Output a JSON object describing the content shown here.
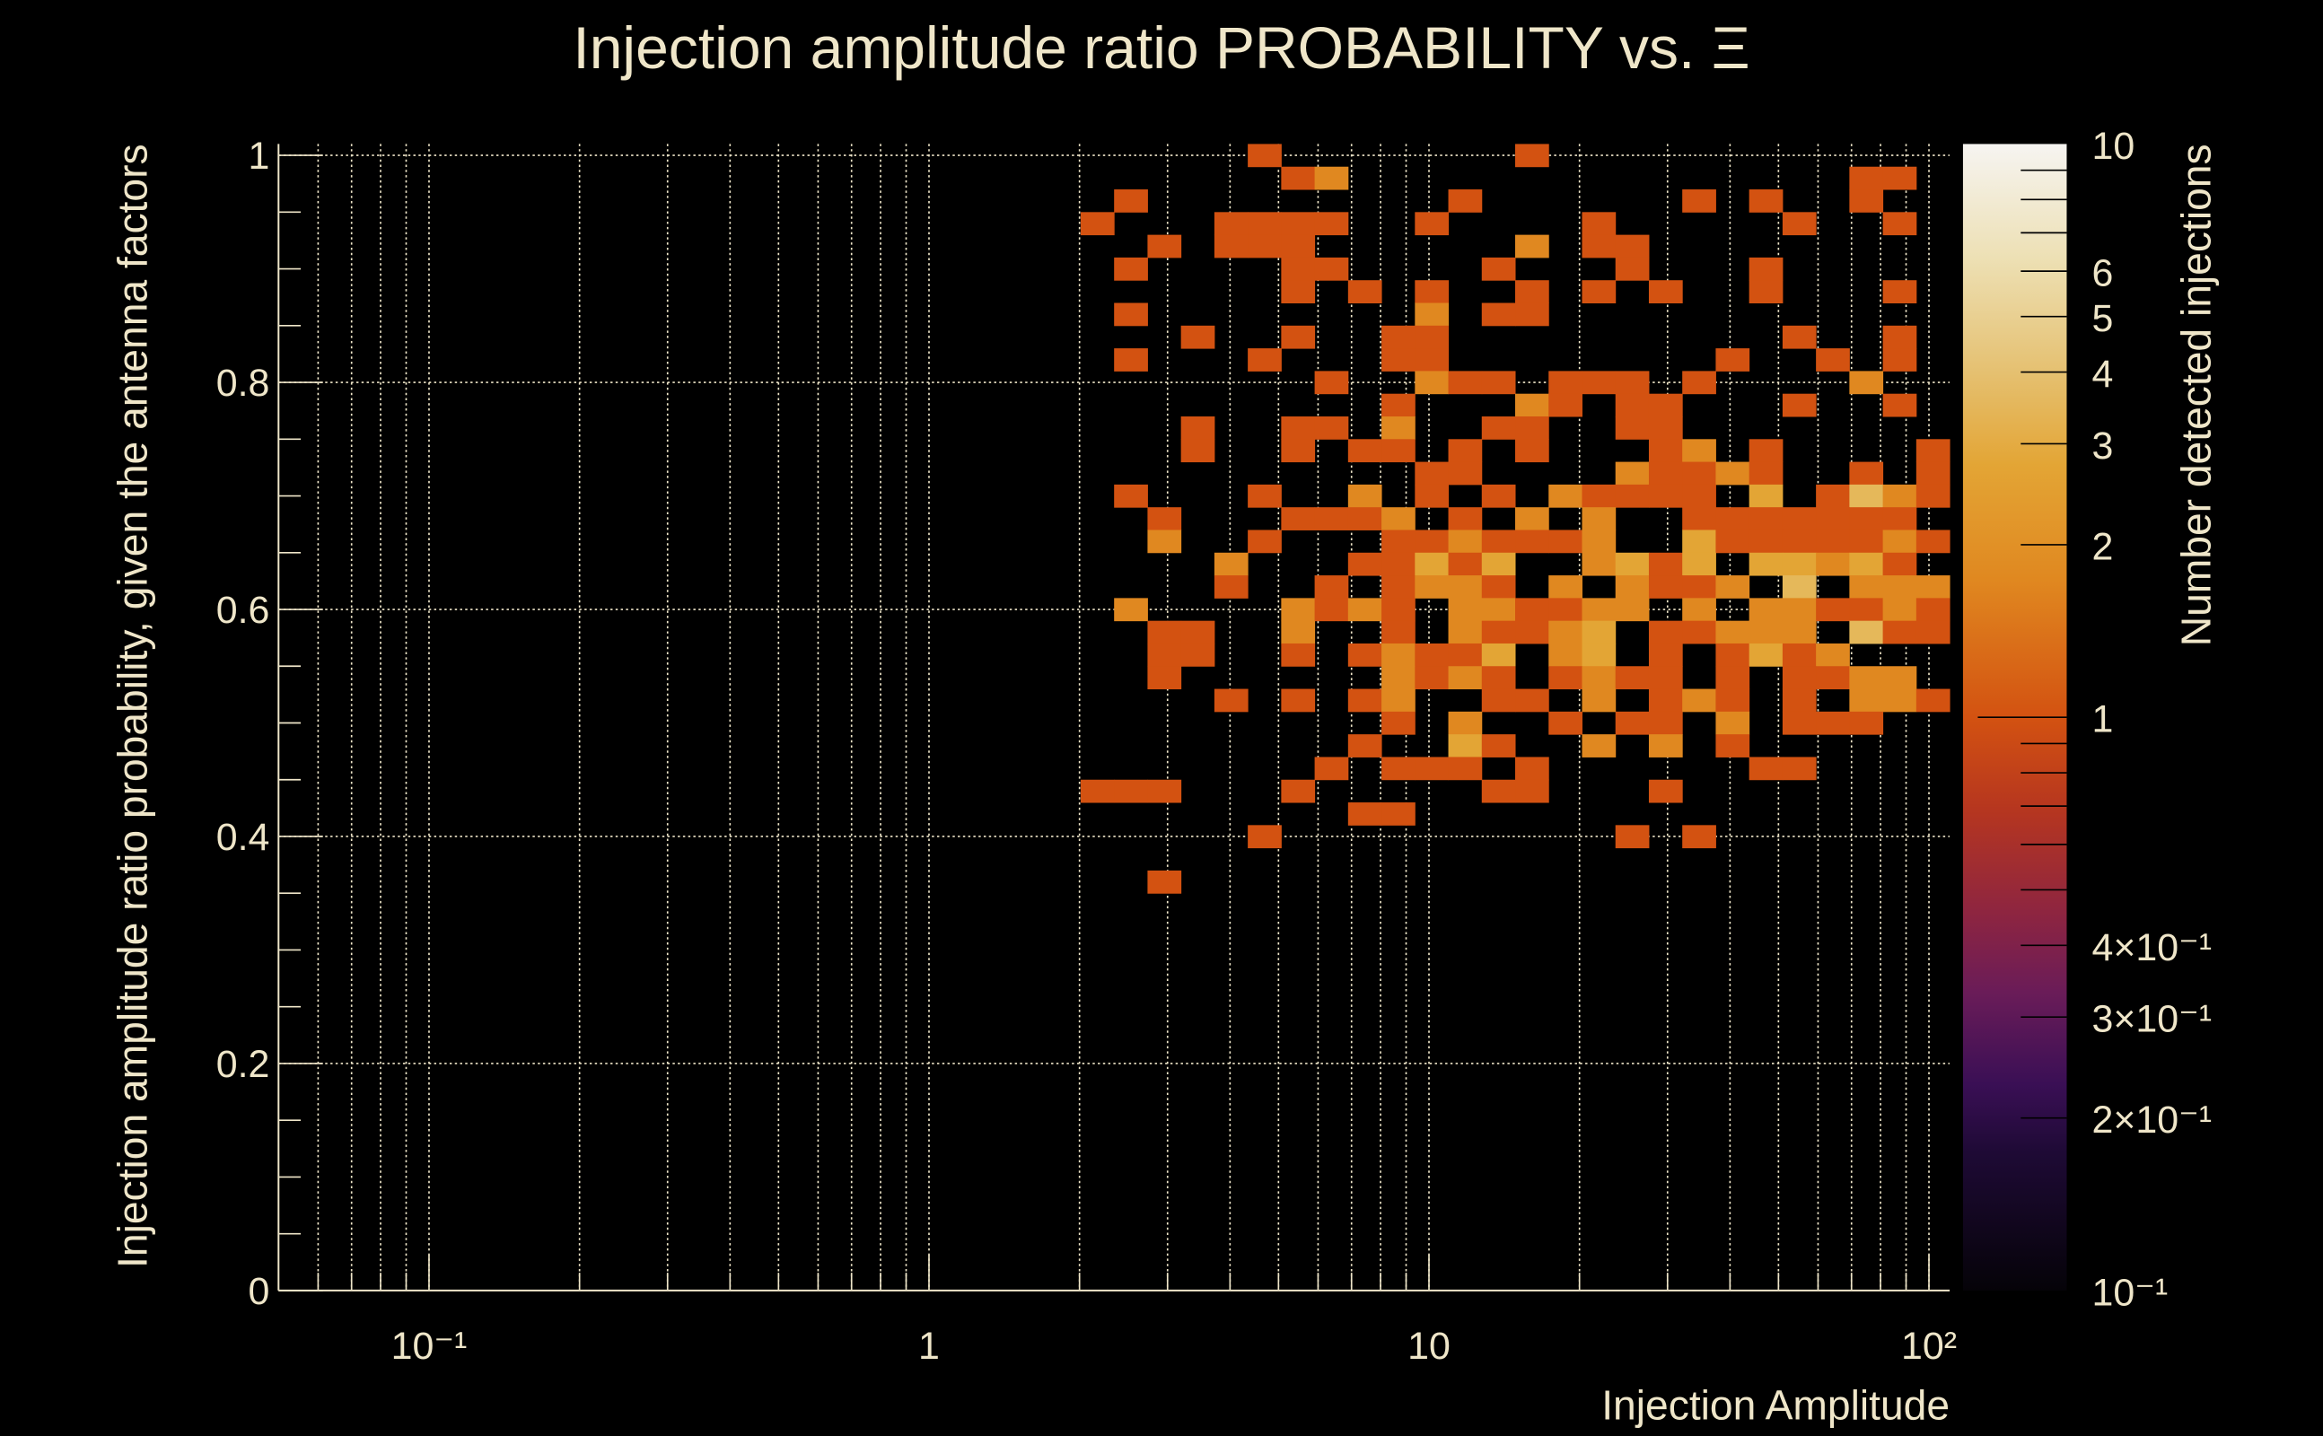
{
  "chart_data": {
    "type": "heatmap",
    "title": "Injection amplitude ratio PROBABILITY vs.  Ξ",
    "xlabel": "Injection Amplitude",
    "ylabel": "Injection amplitude ratio probability, given the antenna factors",
    "zlabel": "Number detected injections",
    "x_scale": "log",
    "xlim": [
      0.05,
      110
    ],
    "ylim": [
      0,
      1.01
    ],
    "zlim": [
      0.1,
      10
    ],
    "z_scale": "log",
    "grid": true,
    "x_bins": {
      "min": 0.05,
      "max": 110,
      "count": 50,
      "scale": "log"
    },
    "y_bins": {
      "min": -0.01,
      "max": 1.01,
      "count": 51,
      "scale": "linear"
    },
    "x_ticks": [
      {
        "value": 0.1,
        "label": "10⁻¹"
      },
      {
        "value": 1,
        "label": "1"
      },
      {
        "value": 10,
        "label": "10"
      },
      {
        "value": 100,
        "label": "10²"
      }
    ],
    "y_ticks": [
      {
        "value": 0,
        "label": "0"
      },
      {
        "value": 0.2,
        "label": "0.2"
      },
      {
        "value": 0.4,
        "label": "0.4"
      },
      {
        "value": 0.6,
        "label": "0.6"
      },
      {
        "value": 0.8,
        "label": "0.8"
      },
      {
        "value": 1,
        "label": "1"
      }
    ],
    "z_ticks": [
      {
        "value": 0.1,
        "label": "10⁻¹"
      },
      {
        "value": 0.2,
        "label": "2×10⁻¹"
      },
      {
        "value": 0.3,
        "label": "3×10⁻¹"
      },
      {
        "value": 0.4,
        "label": "4×10⁻¹"
      },
      {
        "value": 1,
        "label": "1"
      },
      {
        "value": 2,
        "label": "2"
      },
      {
        "value": 3,
        "label": "3"
      },
      {
        "value": 4,
        "label": "4"
      },
      {
        "value": 5,
        "label": "5"
      },
      {
        "value": 6,
        "label": "6"
      },
      {
        "value": 10,
        "label": "10"
      }
    ],
    "count_colors": {
      "1": "#d35211",
      "2": "#e08820",
      "3": "#e3a535",
      "4": "#e5b85a"
    },
    "cells_note": "each cell: [x_bin_index, y_bin_center, count]",
    "cells": [
      [
        29,
        1.0,
        1
      ],
      [
        37,
        1.0,
        1
      ],
      [
        30,
        0.98,
        1
      ],
      [
        31,
        0.98,
        2
      ],
      [
        47,
        0.98,
        1
      ],
      [
        48,
        0.98,
        1
      ],
      [
        25,
        0.96,
        1
      ],
      [
        35,
        0.96,
        1
      ],
      [
        42,
        0.96,
        1
      ],
      [
        44,
        0.96,
        1
      ],
      [
        47,
        0.96,
        1
      ],
      [
        24,
        0.94,
        1
      ],
      [
        28,
        0.94,
        1
      ],
      [
        29,
        0.94,
        1
      ],
      [
        30,
        0.94,
        1
      ],
      [
        31,
        0.94,
        1
      ],
      [
        34,
        0.94,
        1
      ],
      [
        39,
        0.94,
        1
      ],
      [
        45,
        0.94,
        1
      ],
      [
        48,
        0.94,
        1
      ],
      [
        26,
        0.92,
        1
      ],
      [
        28,
        0.92,
        1
      ],
      [
        29,
        0.92,
        1
      ],
      [
        30,
        0.92,
        1
      ],
      [
        37,
        0.92,
        2
      ],
      [
        39,
        0.92,
        1
      ],
      [
        40,
        0.92,
        1
      ],
      [
        25,
        0.9,
        1
      ],
      [
        30,
        0.9,
        1
      ],
      [
        31,
        0.9,
        1
      ],
      [
        36,
        0.9,
        1
      ],
      [
        40,
        0.9,
        1
      ],
      [
        44,
        0.9,
        1
      ],
      [
        30,
        0.88,
        1
      ],
      [
        32,
        0.88,
        1
      ],
      [
        34,
        0.88,
        1
      ],
      [
        37,
        0.88,
        1
      ],
      [
        39,
        0.88,
        1
      ],
      [
        41,
        0.88,
        1
      ],
      [
        44,
        0.88,
        1
      ],
      [
        48,
        0.88,
        1
      ],
      [
        25,
        0.86,
        1
      ],
      [
        34,
        0.86,
        2
      ],
      [
        36,
        0.86,
        1
      ],
      [
        37,
        0.86,
        1
      ],
      [
        27,
        0.84,
        1
      ],
      [
        30,
        0.84,
        1
      ],
      [
        33,
        0.84,
        1
      ],
      [
        34,
        0.84,
        1
      ],
      [
        45,
        0.84,
        1
      ],
      [
        48,
        0.84,
        1
      ],
      [
        25,
        0.82,
        1
      ],
      [
        29,
        0.82,
        1
      ],
      [
        33,
        0.82,
        1
      ],
      [
        34,
        0.82,
        1
      ],
      [
        43,
        0.82,
        1
      ],
      [
        46,
        0.82,
        1
      ],
      [
        48,
        0.82,
        1
      ],
      [
        31,
        0.8,
        1
      ],
      [
        34,
        0.8,
        2
      ],
      [
        35,
        0.8,
        1
      ],
      [
        36,
        0.8,
        1
      ],
      [
        38,
        0.8,
        1
      ],
      [
        39,
        0.8,
        1
      ],
      [
        40,
        0.8,
        1
      ],
      [
        42,
        0.8,
        1
      ],
      [
        47,
        0.8,
        2
      ],
      [
        33,
        0.78,
        1
      ],
      [
        37,
        0.78,
        2
      ],
      [
        38,
        0.78,
        1
      ],
      [
        40,
        0.78,
        1
      ],
      [
        41,
        0.78,
        1
      ],
      [
        45,
        0.78,
        1
      ],
      [
        48,
        0.78,
        1
      ],
      [
        27,
        0.76,
        1
      ],
      [
        30,
        0.76,
        1
      ],
      [
        31,
        0.76,
        1
      ],
      [
        33,
        0.76,
        2
      ],
      [
        36,
        0.76,
        1
      ],
      [
        37,
        0.76,
        1
      ],
      [
        40,
        0.76,
        1
      ],
      [
        41,
        0.76,
        1
      ],
      [
        27,
        0.74,
        1
      ],
      [
        30,
        0.74,
        1
      ],
      [
        32,
        0.74,
        1
      ],
      [
        33,
        0.74,
        1
      ],
      [
        35,
        0.74,
        1
      ],
      [
        37,
        0.74,
        1
      ],
      [
        41,
        0.74,
        1
      ],
      [
        42,
        0.74,
        2
      ],
      [
        44,
        0.74,
        1
      ],
      [
        49,
        0.74,
        1
      ],
      [
        34,
        0.72,
        1
      ],
      [
        35,
        0.72,
        1
      ],
      [
        40,
        0.72,
        2
      ],
      [
        41,
        0.72,
        1
      ],
      [
        42,
        0.72,
        1
      ],
      [
        43,
        0.72,
        2
      ],
      [
        44,
        0.72,
        1
      ],
      [
        47,
        0.72,
        1
      ],
      [
        49,
        0.72,
        1
      ],
      [
        25,
        0.7,
        1
      ],
      [
        29,
        0.7,
        1
      ],
      [
        32,
        0.7,
        2
      ],
      [
        34,
        0.7,
        1
      ],
      [
        36,
        0.7,
        1
      ],
      [
        38,
        0.7,
        2
      ],
      [
        39,
        0.7,
        1
      ],
      [
        40,
        0.7,
        1
      ],
      [
        41,
        0.7,
        1
      ],
      [
        42,
        0.7,
        1
      ],
      [
        44,
        0.7,
        3
      ],
      [
        46,
        0.7,
        1
      ],
      [
        47,
        0.7,
        4
      ],
      [
        48,
        0.7,
        2
      ],
      [
        49,
        0.7,
        1
      ],
      [
        26,
        0.68,
        1
      ],
      [
        30,
        0.68,
        1
      ],
      [
        31,
        0.68,
        1
      ],
      [
        32,
        0.68,
        1
      ],
      [
        33,
        0.68,
        2
      ],
      [
        35,
        0.68,
        1
      ],
      [
        37,
        0.68,
        2
      ],
      [
        39,
        0.68,
        2
      ],
      [
        42,
        0.68,
        1
      ],
      [
        43,
        0.68,
        1
      ],
      [
        44,
        0.68,
        1
      ],
      [
        45,
        0.68,
        1
      ],
      [
        46,
        0.68,
        1
      ],
      [
        47,
        0.68,
        1
      ],
      [
        48,
        0.68,
        1
      ],
      [
        26,
        0.66,
        2
      ],
      [
        29,
        0.66,
        1
      ],
      [
        33,
        0.66,
        1
      ],
      [
        34,
        0.66,
        1
      ],
      [
        35,
        0.66,
        2
      ],
      [
        36,
        0.66,
        1
      ],
      [
        37,
        0.66,
        1
      ],
      [
        38,
        0.66,
        1
      ],
      [
        39,
        0.66,
        2
      ],
      [
        42,
        0.66,
        3
      ],
      [
        43,
        0.66,
        1
      ],
      [
        44,
        0.66,
        1
      ],
      [
        45,
        0.66,
        1
      ],
      [
        46,
        0.66,
        1
      ],
      [
        47,
        0.66,
        1
      ],
      [
        48,
        0.66,
        2
      ],
      [
        49,
        0.66,
        1
      ],
      [
        28,
        0.64,
        2
      ],
      [
        32,
        0.64,
        1
      ],
      [
        33,
        0.64,
        1
      ],
      [
        34,
        0.64,
        3
      ],
      [
        35,
        0.64,
        1
      ],
      [
        36,
        0.64,
        3
      ],
      [
        39,
        0.64,
        2
      ],
      [
        40,
        0.64,
        3
      ],
      [
        41,
        0.64,
        1
      ],
      [
        42,
        0.64,
        3
      ],
      [
        44,
        0.64,
        3
      ],
      [
        45,
        0.64,
        3
      ],
      [
        46,
        0.64,
        2
      ],
      [
        47,
        0.64,
        3
      ],
      [
        48,
        0.64,
        1
      ],
      [
        28,
        0.62,
        1
      ],
      [
        31,
        0.62,
        1
      ],
      [
        33,
        0.62,
        1
      ],
      [
        34,
        0.62,
        2
      ],
      [
        35,
        0.62,
        2
      ],
      [
        36,
        0.62,
        1
      ],
      [
        38,
        0.62,
        2
      ],
      [
        40,
        0.62,
        2
      ],
      [
        41,
        0.62,
        1
      ],
      [
        42,
        0.62,
        1
      ],
      [
        43,
        0.62,
        2
      ],
      [
        45,
        0.62,
        4
      ],
      [
        47,
        0.62,
        2
      ],
      [
        48,
        0.62,
        2
      ],
      [
        49,
        0.62,
        2
      ],
      [
        25,
        0.6,
        2
      ],
      [
        30,
        0.6,
        2
      ],
      [
        31,
        0.6,
        1
      ],
      [
        32,
        0.6,
        2
      ],
      [
        33,
        0.6,
        1
      ],
      [
        35,
        0.6,
        2
      ],
      [
        36,
        0.6,
        2
      ],
      [
        37,
        0.6,
        1
      ],
      [
        38,
        0.6,
        1
      ],
      [
        39,
        0.6,
        2
      ],
      [
        40,
        0.6,
        2
      ],
      [
        42,
        0.6,
        2
      ],
      [
        44,
        0.6,
        2
      ],
      [
        45,
        0.6,
        2
      ],
      [
        46,
        0.6,
        1
      ],
      [
        47,
        0.6,
        1
      ],
      [
        48,
        0.6,
        2
      ],
      [
        49,
        0.6,
        1
      ],
      [
        26,
        0.58,
        1
      ],
      [
        27,
        0.58,
        1
      ],
      [
        30,
        0.58,
        2
      ],
      [
        33,
        0.58,
        1
      ],
      [
        35,
        0.58,
        2
      ],
      [
        36,
        0.58,
        1
      ],
      [
        37,
        0.58,
        1
      ],
      [
        38,
        0.58,
        2
      ],
      [
        39,
        0.58,
        3
      ],
      [
        41,
        0.58,
        1
      ],
      [
        42,
        0.58,
        1
      ],
      [
        43,
        0.58,
        2
      ],
      [
        44,
        0.58,
        2
      ],
      [
        45,
        0.58,
        2
      ],
      [
        47,
        0.58,
        4
      ],
      [
        48,
        0.58,
        1
      ],
      [
        49,
        0.58,
        1
      ],
      [
        26,
        0.56,
        1
      ],
      [
        27,
        0.56,
        1
      ],
      [
        30,
        0.56,
        1
      ],
      [
        32,
        0.56,
        1
      ],
      [
        33,
        0.56,
        2
      ],
      [
        34,
        0.56,
        1
      ],
      [
        35,
        0.56,
        1
      ],
      [
        36,
        0.56,
        3
      ],
      [
        38,
        0.56,
        2
      ],
      [
        39,
        0.56,
        3
      ],
      [
        41,
        0.56,
        1
      ],
      [
        43,
        0.56,
        1
      ],
      [
        44,
        0.56,
        3
      ],
      [
        45,
        0.56,
        1
      ],
      [
        46,
        0.56,
        2
      ],
      [
        26,
        0.54,
        1
      ],
      [
        33,
        0.54,
        2
      ],
      [
        34,
        0.54,
        1
      ],
      [
        35,
        0.54,
        2
      ],
      [
        36,
        0.54,
        1
      ],
      [
        38,
        0.54,
        1
      ],
      [
        39,
        0.54,
        2
      ],
      [
        40,
        0.54,
        1
      ],
      [
        41,
        0.54,
        1
      ],
      [
        43,
        0.54,
        1
      ],
      [
        45,
        0.54,
        1
      ],
      [
        46,
        0.54,
        1
      ],
      [
        47,
        0.54,
        2
      ],
      [
        48,
        0.54,
        2
      ],
      [
        28,
        0.52,
        1
      ],
      [
        30,
        0.52,
        1
      ],
      [
        32,
        0.52,
        1
      ],
      [
        33,
        0.52,
        2
      ],
      [
        36,
        0.52,
        1
      ],
      [
        37,
        0.52,
        1
      ],
      [
        39,
        0.52,
        2
      ],
      [
        41,
        0.52,
        1
      ],
      [
        42,
        0.52,
        2
      ],
      [
        43,
        0.52,
        1
      ],
      [
        45,
        0.52,
        1
      ],
      [
        47,
        0.52,
        2
      ],
      [
        48,
        0.52,
        2
      ],
      [
        49,
        0.52,
        1
      ],
      [
        33,
        0.5,
        1
      ],
      [
        35,
        0.5,
        2
      ],
      [
        38,
        0.5,
        1
      ],
      [
        40,
        0.5,
        1
      ],
      [
        41,
        0.5,
        1
      ],
      [
        43,
        0.5,
        2
      ],
      [
        45,
        0.5,
        1
      ],
      [
        46,
        0.5,
        1
      ],
      [
        47,
        0.5,
        1
      ],
      [
        32,
        0.48,
        1
      ],
      [
        35,
        0.48,
        3
      ],
      [
        36,
        0.48,
        1
      ],
      [
        39,
        0.48,
        2
      ],
      [
        41,
        0.48,
        2
      ],
      [
        43,
        0.48,
        1
      ],
      [
        31,
        0.46,
        1
      ],
      [
        33,
        0.46,
        1
      ],
      [
        34,
        0.46,
        1
      ],
      [
        35,
        0.46,
        1
      ],
      [
        37,
        0.46,
        1
      ],
      [
        44,
        0.46,
        1
      ],
      [
        45,
        0.46,
        1
      ],
      [
        24,
        0.44,
        1
      ],
      [
        25,
        0.44,
        1
      ],
      [
        26,
        0.44,
        1
      ],
      [
        30,
        0.44,
        1
      ],
      [
        36,
        0.44,
        1
      ],
      [
        37,
        0.44,
        1
      ],
      [
        41,
        0.44,
        1
      ],
      [
        32,
        0.42,
        1
      ],
      [
        33,
        0.42,
        1
      ],
      [
        29,
        0.4,
        1
      ],
      [
        40,
        0.4,
        1
      ],
      [
        42,
        0.4,
        1
      ],
      [
        26,
        0.36,
        1
      ]
    ]
  }
}
